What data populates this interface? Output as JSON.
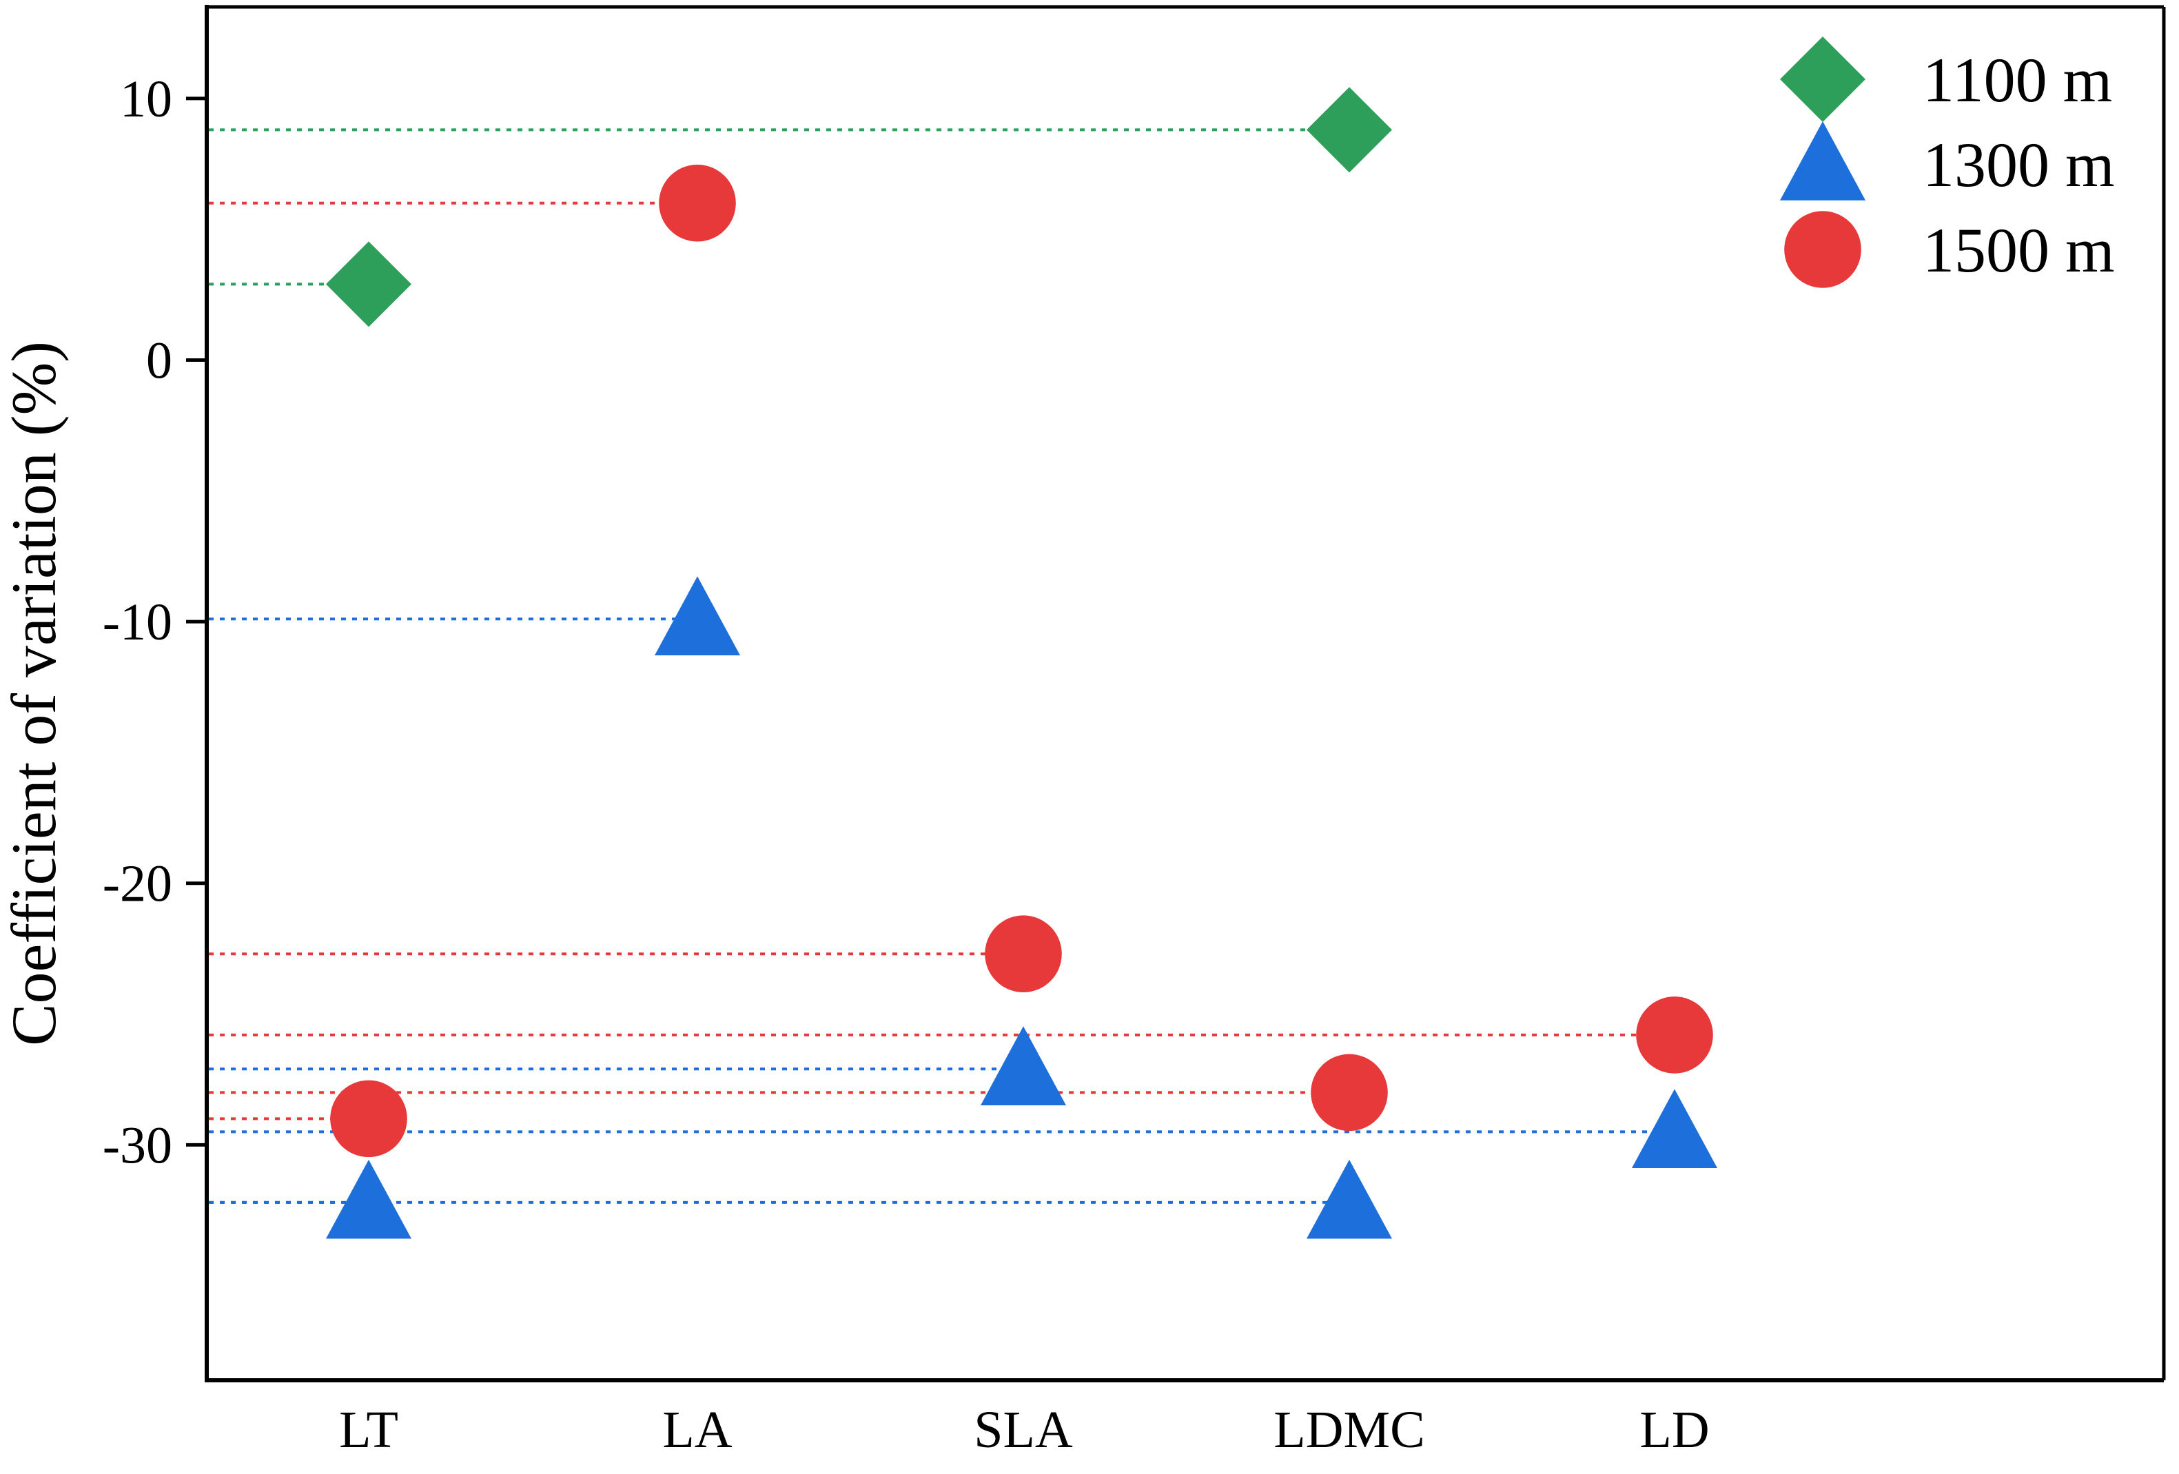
{
  "chart_data": {
    "type": "scatter",
    "title": "",
    "xlabel": "",
    "ylabel": "Coefficient of variation (%)",
    "categories": [
      "LT",
      "LA",
      "SLA",
      "LDMC",
      "LD"
    ],
    "ylim": [
      -39,
      13.5
    ],
    "yticks": [
      10,
      0,
      -10,
      -20,
      -30
    ],
    "grid": false,
    "legend_position": "top-right",
    "reference_lines": "dotted",
    "series": [
      {
        "name": "1100 m",
        "marker": "diamond",
        "color": "#2e9e5b",
        "values": [
          2.9,
          null,
          null,
          8.8,
          null
        ]
      },
      {
        "name": "1300 m",
        "marker": "triangle",
        "color": "#1d6fdc",
        "values": [
          -32.2,
          -9.9,
          -27.1,
          -32.2,
          -29.5
        ]
      },
      {
        "name": "1500 m",
        "marker": "circle",
        "color": "#e8393a",
        "values": [
          -29.0,
          6.0,
          -22.7,
          -28.0,
          -25.8
        ]
      }
    ]
  }
}
